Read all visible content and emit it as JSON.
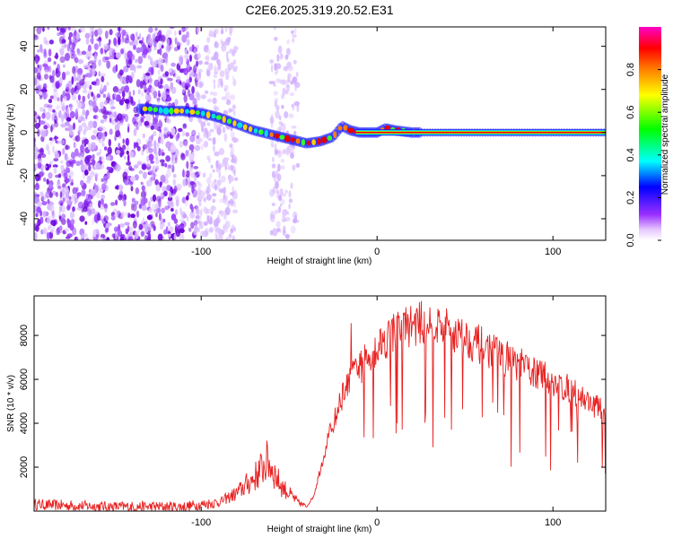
{
  "title": "C2E6.2025.319.20.52.E31",
  "colors": {
    "snr_line": "#e82020",
    "frame": "#000000",
    "scatter": "#8a2be2",
    "track_core": "#e80000",
    "track_glow": "#1a1aff"
  },
  "chart_data": [
    {
      "type": "heatmap",
      "xlabel": "Height of straight line (km)",
      "ylabel": "Frequency (Hz)",
      "xlim": [
        -195,
        130
      ],
      "ylim": [
        -50,
        49
      ],
      "xticks": [
        -100,
        0,
        100
      ],
      "yticks": [
        -40,
        -20,
        0,
        20,
        40
      ],
      "colorbar": {
        "label": "Normalized spectral amplitude",
        "range": [
          0,
          1
        ],
        "ticks": [
          "0.0",
          "0.2",
          "0.4",
          "0.6",
          "0.8"
        ]
      },
      "track": [
        [
          -130,
          11
        ],
        [
          -120,
          10
        ],
        [
          -110,
          10
        ],
        [
          -100,
          9
        ],
        [
          -90,
          7
        ],
        [
          -80,
          4
        ],
        [
          -70,
          1
        ],
        [
          -60,
          -1
        ],
        [
          -50,
          -3
        ],
        [
          -40,
          -5
        ],
        [
          -32,
          -4
        ],
        [
          -25,
          -2
        ],
        [
          -20,
          3
        ],
        [
          -15,
          1
        ],
        [
          -10,
          0
        ],
        [
          0,
          0
        ],
        [
          5,
          2
        ],
        [
          10,
          1
        ],
        [
          20,
          0
        ],
        [
          130,
          0
        ]
      ]
    },
    {
      "type": "line",
      "xlabel": "Height of straight line (km)",
      "ylabel": "SNR (10 * v/v)",
      "xlim": [
        -195,
        130
      ],
      "ylim": [
        0,
        9800
      ],
      "xticks": [
        -100,
        0,
        100
      ],
      "yticks": [
        2000,
        4000,
        6000,
        8000
      ],
      "envelope": [
        [
          -195,
          300
        ],
        [
          -150,
          200
        ],
        [
          -110,
          200
        ],
        [
          -90,
          400
        ],
        [
          -80,
          800
        ],
        [
          -70,
          1500
        ],
        [
          -62,
          2300
        ],
        [
          -55,
          1200
        ],
        [
          -45,
          400
        ],
        [
          -40,
          200
        ],
        [
          -36,
          700
        ],
        [
          -32,
          2000
        ],
        [
          -28,
          3300
        ],
        [
          -24,
          4200
        ],
        [
          -20,
          5200
        ],
        [
          -15,
          6000
        ],
        [
          -10,
          6500
        ],
        [
          -5,
          7000
        ],
        [
          0,
          7500
        ],
        [
          10,
          8200
        ],
        [
          20,
          8500
        ],
        [
          30,
          8600
        ],
        [
          40,
          8300
        ],
        [
          50,
          7900
        ],
        [
          60,
          7500
        ],
        [
          70,
          7100
        ],
        [
          80,
          6700
        ],
        [
          90,
          6300
        ],
        [
          100,
          5900
        ],
        [
          110,
          5500
        ],
        [
          120,
          5000
        ],
        [
          130,
          4500
        ]
      ]
    }
  ]
}
